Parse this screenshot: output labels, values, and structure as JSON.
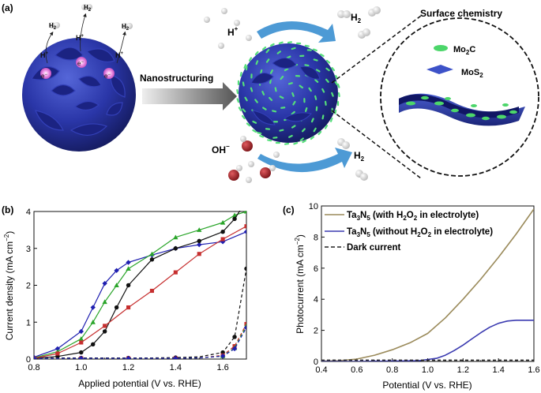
{
  "panel_a": {
    "label": "(a)",
    "surface_chemistry": "Surface chemistry",
    "nanostructuring": "Nanostructuring",
    "hplus": "H",
    "hplus_sup": "+",
    "ohminus": "OH",
    "ohminus_sup": "−",
    "h2_left": [
      "H",
      "H",
      "H"
    ],
    "h2_sub": "2",
    "h2_right_top": "H",
    "h2_right_bottom": "H",
    "left_hplus": "H",
    "electron": "e",
    "electron_sup": "−",
    "legend_mo2c": "Mo",
    "legend_mo2c_sub": "2",
    "legend_mo2c_rest": "C",
    "legend_mos2": "MoS",
    "legend_mos2_sub": "2",
    "colors": {
      "sphere": "#1f2a8c",
      "mo2c": "#4cd66a",
      "arrow": "#3a8fd0",
      "o_atom": "#a8262a"
    }
  },
  "panel_b": {
    "label": "(b)",
    "chart_data": {
      "type": "line",
      "xlabel": "Applied potential (V vs. RHE)",
      "ylabel": "Current density (mA cm",
      "ylabel_sup": "−2",
      "ylabel_end": ")",
      "xlim": [
        0.8,
        1.7
      ],
      "ylim": [
        0,
        4
      ],
      "xticks": [
        "0.8",
        "1.0",
        "1.2",
        "1.4",
        "1.6"
      ],
      "yticks": [
        "0",
        "1",
        "2",
        "3",
        "4"
      ],
      "series": [
        {
          "color": "#1f1fb0",
          "marker": "diamond",
          "style": "solid",
          "x": [
            0.8,
            0.9,
            1.0,
            1.05,
            1.1,
            1.15,
            1.2,
            1.3,
            1.4,
            1.5,
            1.6,
            1.7
          ],
          "y": [
            0.05,
            0.28,
            0.75,
            1.4,
            2.05,
            2.4,
            2.62,
            2.82,
            3.0,
            3.1,
            3.18,
            3.45
          ]
        },
        {
          "color": "#2aa52a",
          "marker": "triangle",
          "style": "solid",
          "x": [
            0.8,
            0.9,
            1.0,
            1.05,
            1.1,
            1.15,
            1.2,
            1.3,
            1.4,
            1.5,
            1.6,
            1.65,
            1.7
          ],
          "y": [
            0.03,
            0.2,
            0.55,
            1.0,
            1.55,
            2.0,
            2.45,
            2.85,
            3.3,
            3.5,
            3.7,
            3.9,
            4.0
          ]
        },
        {
          "color": "#111111",
          "marker": "circle",
          "style": "solid",
          "x": [
            0.8,
            0.9,
            1.0,
            1.05,
            1.1,
            1.15,
            1.2,
            1.3,
            1.4,
            1.5,
            1.6,
            1.65,
            1.7
          ],
          "y": [
            0.02,
            0.07,
            0.18,
            0.4,
            0.75,
            1.4,
            2.0,
            2.7,
            3.0,
            3.2,
            3.45,
            3.8,
            4.3
          ]
        },
        {
          "color": "#c62f2f",
          "marker": "square",
          "style": "solid",
          "x": [
            0.8,
            0.9,
            1.0,
            1.1,
            1.2,
            1.3,
            1.4,
            1.5,
            1.6,
            1.7
          ],
          "y": [
            0.02,
            0.15,
            0.45,
            0.9,
            1.4,
            1.85,
            2.35,
            2.85,
            3.25,
            3.6
          ]
        },
        {
          "color": "#111111",
          "marker": "circle",
          "style": "dashed",
          "x": [
            0.8,
            0.9,
            1.0,
            1.1,
            1.2,
            1.3,
            1.4,
            1.5,
            1.6,
            1.65,
            1.7
          ],
          "y": [
            0.02,
            0.03,
            0.03,
            0.03,
            0.03,
            0.03,
            0.04,
            0.06,
            0.18,
            0.6,
            2.45
          ]
        },
        {
          "color": "#c62f2f",
          "marker": "square",
          "style": "dashed",
          "x": [
            0.8,
            0.9,
            1.0,
            1.1,
            1.2,
            1.3,
            1.4,
            1.5,
            1.6,
            1.65,
            1.7
          ],
          "y": [
            0.02,
            0.02,
            0.02,
            0.02,
            0.02,
            0.02,
            0.02,
            0.03,
            0.1,
            0.35,
            0.95
          ]
        },
        {
          "color": "#2aa52a",
          "marker": "triangle",
          "style": "dashed",
          "x": [
            0.8,
            0.9,
            1.0,
            1.1,
            1.2,
            1.3,
            1.4,
            1.5,
            1.6,
            1.65,
            1.7
          ],
          "y": [
            0.02,
            0.02,
            0.02,
            0.02,
            0.02,
            0.02,
            0.02,
            0.03,
            0.08,
            0.3,
            0.9
          ]
        },
        {
          "color": "#1f1fb0",
          "marker": "diamond",
          "style": "dashed",
          "x": [
            0.8,
            0.9,
            1.0,
            1.1,
            1.2,
            1.3,
            1.4,
            1.5,
            1.6,
            1.65,
            1.7
          ],
          "y": [
            0.02,
            0.02,
            0.02,
            0.02,
            0.02,
            0.02,
            0.02,
            0.03,
            0.08,
            0.28,
            0.85
          ]
        }
      ]
    }
  },
  "panel_c": {
    "label": "(c)",
    "chart_data": {
      "type": "line",
      "xlabel": "Potential (V vs. RHE)",
      "ylabel": "Photocurrent (mA cm",
      "ylabel_sup": "−2",
      "ylabel_end": ")",
      "xlim": [
        0.4,
        1.6
      ],
      "ylim": [
        0,
        10
      ],
      "xticks": [
        "0.4",
        "0.6",
        "0.8",
        "1.0",
        "1.2",
        "1.4",
        "1.6"
      ],
      "yticks": [
        "0",
        "2",
        "4",
        "6",
        "8",
        "10"
      ],
      "legend_position": "top-left",
      "series": [
        {
          "name": "Ta",
          "name_sub1": "3",
          "name_mid": "N",
          "name_sub2": "5",
          "name_rest": " (with H",
          "name_sub3": "2",
          "name_mid2": "O",
          "name_sub4": "2",
          "name_end": " in electrolyte)",
          "color": "#9a8a5a",
          "style": "solid",
          "x": [
            0.4,
            0.5,
            0.6,
            0.7,
            0.8,
            0.9,
            1.0,
            1.1,
            1.2,
            1.3,
            1.4,
            1.5,
            1.6
          ],
          "y": [
            0.02,
            0.05,
            0.15,
            0.4,
            0.75,
            1.2,
            1.8,
            2.8,
            4.0,
            5.3,
            6.7,
            8.2,
            9.8
          ]
        },
        {
          "name": "Ta",
          "name_sub1": "3",
          "name_mid": "N",
          "name_sub2": "5",
          "name_rest": " (without H",
          "name_sub3": "2",
          "name_mid2": "O",
          "name_sub4": "2",
          "name_end": " in electrolyte)",
          "color": "#3a3ab0",
          "style": "solid",
          "x": [
            0.4,
            0.6,
            0.8,
            0.95,
            1.05,
            1.1,
            1.15,
            1.2,
            1.25,
            1.3,
            1.35,
            1.4,
            1.45,
            1.5,
            1.6
          ],
          "y": [
            0.0,
            0.0,
            0.02,
            0.05,
            0.2,
            0.4,
            0.7,
            1.05,
            1.45,
            1.85,
            2.2,
            2.45,
            2.6,
            2.65,
            2.65
          ]
        },
        {
          "name": "Dark current",
          "color": "#222222",
          "style": "dashed",
          "x": [
            0.4,
            1.6
          ],
          "y": [
            0.08,
            0.08
          ]
        }
      ]
    }
  }
}
